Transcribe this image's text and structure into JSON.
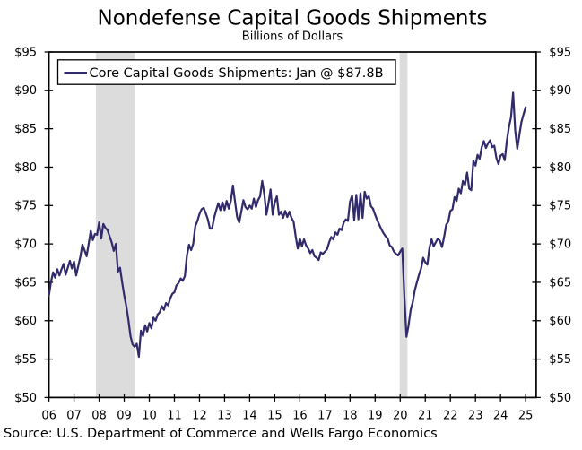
{
  "header": {
    "title": "Nondefense Capital Goods Shipments",
    "subtitle": "Billions of Dollars"
  },
  "legend": {
    "label": "Core Capital Goods Shipments: Jan @ $87.8B"
  },
  "footer": {
    "source": "Source: U.S. Department of Commerce and Wells Fargo Economics"
  },
  "colors": {
    "line": "#312A6B",
    "recession_band": "#DCDCDC",
    "axis": "#000000",
    "background": "#FFFFFF"
  },
  "chart_data": {
    "type": "line",
    "title": "Nondefense Capital Goods Shipments",
    "subtitle": "Billions of Dollars",
    "xlabel": "",
    "ylabel": "Billions of Dollars",
    "grid": false,
    "legend_position": "top-left",
    "x_start_year": 2006,
    "x_frequency": "monthly",
    "xlim": [
      2006.0,
      2025.42
    ],
    "ylim": [
      50,
      95
    ],
    "y_tick_step": 5,
    "y_tick_prefix": "$",
    "y_axis_sides": "both",
    "x_tick_years": [
      2006,
      2007,
      2008,
      2009,
      2010,
      2011,
      2012,
      2013,
      2014,
      2015,
      2016,
      2017,
      2018,
      2019,
      2020,
      2021,
      2022,
      2023,
      2024,
      2025
    ],
    "x_tick_labels": [
      "06",
      "07",
      "08",
      "09",
      "10",
      "11",
      "12",
      "13",
      "14",
      "15",
      "16",
      "17",
      "18",
      "19",
      "20",
      "21",
      "22",
      "23",
      "24",
      "25"
    ],
    "recession_bands": [
      [
        2007.87,
        2009.42
      ],
      [
        2019.98,
        2020.29
      ]
    ],
    "series": [
      {
        "name": "Core Capital Goods Shipments",
        "latest_label": "Jan @ $87.8B",
        "values": [
          63.3,
          65.1,
          66.3,
          65.6,
          66.7,
          65.9,
          66.7,
          67.4,
          66.0,
          66.9,
          67.8,
          66.8,
          67.7,
          65.9,
          67.1,
          68.3,
          69.9,
          69.2,
          68.4,
          70.0,
          71.7,
          70.5,
          71.3,
          71.2,
          72.8,
          70.7,
          72.6,
          72.1,
          71.8,
          71.0,
          70.2,
          69.1,
          70.0,
          66.4,
          66.9,
          65.0,
          63.3,
          61.9,
          60.1,
          58.0,
          56.9,
          56.6,
          57.0,
          55.3,
          58.7,
          58.0,
          59.4,
          58.6,
          59.7,
          59.0,
          60.4,
          60.0,
          60.8,
          61.1,
          61.9,
          61.4,
          62.3,
          62.0,
          62.9,
          63.5,
          63.7,
          64.6,
          64.9,
          65.5,
          65.2,
          65.8,
          68.5,
          69.9,
          69.2,
          70.0,
          72.3,
          73.0,
          73.9,
          74.5,
          74.7,
          74.0,
          73.2,
          72.0,
          72.0,
          73.4,
          74.4,
          75.3,
          74.4,
          75.4,
          74.4,
          75.6,
          74.6,
          75.6,
          77.6,
          75.5,
          73.5,
          72.8,
          74.2,
          75.7,
          74.8,
          74.5,
          75.0,
          74.6,
          75.9,
          74.8,
          75.7,
          76.2,
          78.2,
          76.5,
          73.8,
          75.3,
          77.1,
          73.8,
          75.4,
          76.2,
          73.8,
          74.2,
          73.4,
          74.3,
          73.5,
          74.2,
          73.4,
          72.9,
          71.0,
          69.4,
          70.7,
          69.7,
          70.6,
          69.8,
          69.4,
          68.8,
          69.2,
          68.4,
          68.2,
          67.9,
          68.9,
          68.7,
          69.0,
          69.3,
          70.2,
          70.9,
          70.6,
          71.5,
          71.2,
          72.0,
          71.8,
          72.8,
          73.2,
          73.0,
          75.5,
          76.3,
          73.1,
          76.4,
          73.2,
          76.6,
          73.4,
          76.8,
          75.9,
          76.2,
          74.9,
          74.6,
          73.8,
          73.1,
          72.5,
          71.9,
          71.4,
          71.0,
          70.7,
          69.8,
          69.6,
          69.0,
          68.7,
          68.5,
          69.0,
          69.4,
          63.1,
          57.9,
          59.4,
          61.4,
          62.4,
          64.0,
          65.0,
          66.0,
          66.8,
          68.2,
          67.6,
          67.3,
          69.5,
          70.6,
          69.7,
          70.2,
          70.7,
          70.4,
          69.6,
          70.9,
          72.5,
          72.9,
          74.3,
          74.5,
          76.1,
          75.6,
          77.2,
          76.6,
          78.2,
          77.7,
          79.3,
          77.2,
          77.0,
          80.8,
          80.2,
          81.6,
          81.1,
          82.6,
          83.4,
          82.5,
          83.1,
          83.5,
          82.6,
          82.8,
          81.2,
          80.4,
          81.5,
          81.7,
          80.9,
          83.4,
          85.2,
          86.5,
          89.7,
          84.8,
          82.4,
          84.2,
          85.9,
          86.9,
          87.8
        ]
      }
    ]
  }
}
